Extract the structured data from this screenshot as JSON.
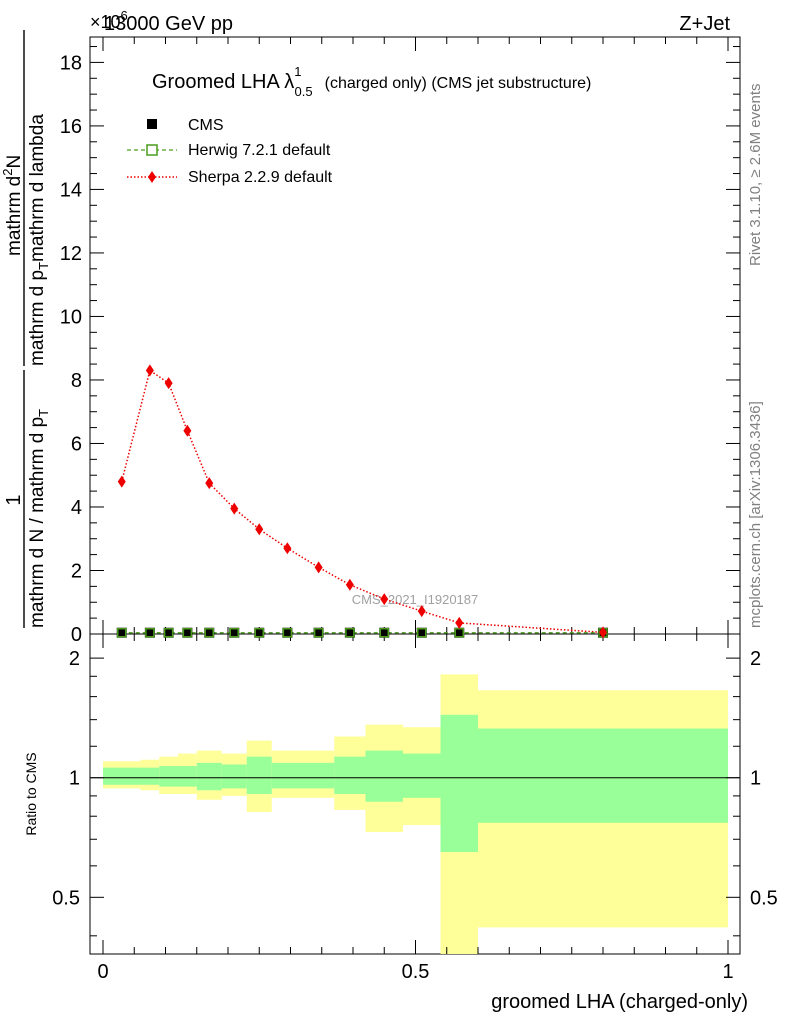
{
  "header": {
    "energy": "13000 GeV pp",
    "exponent": "×10",
    "exponent_power": "6",
    "process": "Z+Jet"
  },
  "side_labels": {
    "rivet": "Rivet 3.1.10, ≥ 2.6M events",
    "mcplots": "mcplots.cern.ch [arXiv:1306.3436]"
  },
  "title": {
    "main": "Groomed LHA λ",
    "sup": "1",
    "sub": "0.5",
    "suffix": "(charged only) (CMS jet substructure)"
  },
  "watermark": "CMS_2021_I1920187",
  "ylabel_main": {
    "frac_num": "1",
    "frac_den": "mathrm d N / mathrm d p",
    "frac_den_sub": "T",
    "deriv_num": "mathrm d",
    "deriv_num_sup": "2",
    "deriv_num_tail": "N",
    "deriv_den": "mathrm d p",
    "deriv_den_sub": "T",
    "deriv_den_tail": "mathrm d lambda"
  },
  "ylabel_ratio": "Ratio to CMS",
  "xlabel": "groomed LHA (charged-only)",
  "legend": [
    {
      "label": "CMS",
      "marker": "square-filled",
      "color": "#000000"
    },
    {
      "label": "Herwig 7.2.1 default",
      "marker": "square-open",
      "color": "#4a9c1a"
    },
    {
      "label": "Sherpa 2.2.9 default",
      "marker": "diamond",
      "color": "#ee0000"
    }
  ],
  "chart_data": [
    {
      "type": "line",
      "title": "Groomed LHA λ^1_0.5 (charged only) (CMS jet substructure)",
      "xlabel": "groomed LHA (charged-only)",
      "ylabel": "1/(mathrm d N / mathrm d p_T) mathrm d^2N/(mathrm d p_T mathrm d lambda)",
      "xlim": [
        0,
        1
      ],
      "ylim": [
        0,
        18.8
      ],
      "y_scale_label": "×10^6",
      "y_ticks": [
        0,
        2,
        4,
        6,
        8,
        10,
        12,
        14,
        16,
        18
      ],
      "x_ticks": [
        0,
        0.5,
        1
      ],
      "bins": [
        [
          0.0,
          0.06
        ],
        [
          0.06,
          0.09
        ],
        [
          0.09,
          0.12
        ],
        [
          0.12,
          0.15
        ],
        [
          0.15,
          0.19
        ],
        [
          0.19,
          0.23
        ],
        [
          0.23,
          0.27
        ],
        [
          0.27,
          0.32
        ],
        [
          0.32,
          0.37
        ],
        [
          0.37,
          0.42
        ],
        [
          0.42,
          0.48
        ],
        [
          0.48,
          0.54
        ],
        [
          0.54,
          0.6
        ],
        [
          0.6,
          1.0
        ]
      ],
      "series": [
        {
          "name": "CMS",
          "x": [
            0.03,
            0.075,
            0.105,
            0.135,
            0.17,
            0.21,
            0.25,
            0.295,
            0.345,
            0.395,
            0.45,
            0.51,
            0.57,
            0.8
          ],
          "values": [
            0.04,
            0.04,
            0.04,
            0.04,
            0.04,
            0.04,
            0.04,
            0.04,
            0.04,
            0.04,
            0.04,
            0.04,
            0.04,
            0.04
          ]
        },
        {
          "name": "Herwig 7.2.1 default",
          "x": [
            0.03,
            0.075,
            0.105,
            0.135,
            0.17,
            0.21,
            0.25,
            0.295,
            0.345,
            0.395,
            0.45,
            0.51,
            0.57,
            0.8
          ],
          "values": [
            0.04,
            0.04,
            0.04,
            0.04,
            0.04,
            0.04,
            0.04,
            0.04,
            0.04,
            0.04,
            0.04,
            0.04,
            0.04,
            0.04
          ]
        },
        {
          "name": "Sherpa 2.2.9 default",
          "x": [
            0.03,
            0.075,
            0.105,
            0.135,
            0.17,
            0.21,
            0.25,
            0.295,
            0.345,
            0.395,
            0.45,
            0.51,
            0.57,
            0.8
          ],
          "values": [
            4.8,
            8.3,
            7.9,
            6.4,
            4.75,
            3.95,
            3.3,
            2.7,
            2.1,
            1.55,
            1.1,
            0.72,
            0.35,
            0.05
          ]
        }
      ]
    },
    {
      "type": "area",
      "ylabel": "Ratio to CMS",
      "xlabel": "groomed LHA (charged-only)",
      "xlim": [
        0,
        1
      ],
      "ylim": [
        0.36,
        2.3
      ],
      "y_scale": "log",
      "y_ticks": [
        0.5,
        1,
        2
      ],
      "bins": [
        [
          0.0,
          0.06
        ],
        [
          0.06,
          0.09
        ],
        [
          0.09,
          0.12
        ],
        [
          0.12,
          0.15
        ],
        [
          0.15,
          0.19
        ],
        [
          0.19,
          0.23
        ],
        [
          0.23,
          0.27
        ],
        [
          0.27,
          0.32
        ],
        [
          0.32,
          0.37
        ],
        [
          0.37,
          0.42
        ],
        [
          0.42,
          0.48
        ],
        [
          0.48,
          0.54
        ],
        [
          0.54,
          0.6
        ],
        [
          0.6,
          1.0
        ]
      ],
      "series": [
        {
          "name": "CMS total uncertainty",
          "low": [
            0.94,
            0.93,
            0.91,
            0.91,
            0.88,
            0.9,
            0.82,
            0.89,
            0.89,
            0.83,
            0.73,
            0.76,
            0.36,
            0.42
          ],
          "high": [
            1.1,
            1.11,
            1.13,
            1.15,
            1.17,
            1.15,
            1.24,
            1.17,
            1.17,
            1.27,
            1.36,
            1.34,
            1.82,
            1.66
          ]
        },
        {
          "name": "CMS statistical uncertainty",
          "low": [
            0.96,
            0.96,
            0.95,
            0.95,
            0.93,
            0.94,
            0.91,
            0.94,
            0.94,
            0.91,
            0.87,
            0.89,
            0.65,
            0.77
          ],
          "high": [
            1.06,
            1.06,
            1.07,
            1.07,
            1.09,
            1.08,
            1.13,
            1.09,
            1.09,
            1.13,
            1.17,
            1.15,
            1.44,
            1.33
          ]
        }
      ]
    }
  ],
  "colors": {
    "sherpa": "#ee0000",
    "herwig": "#4a9c1a",
    "band_outer": "#ffff99",
    "band_inner": "#99ff99",
    "side_text": "#808080",
    "watermark": "#a0a0a0"
  }
}
